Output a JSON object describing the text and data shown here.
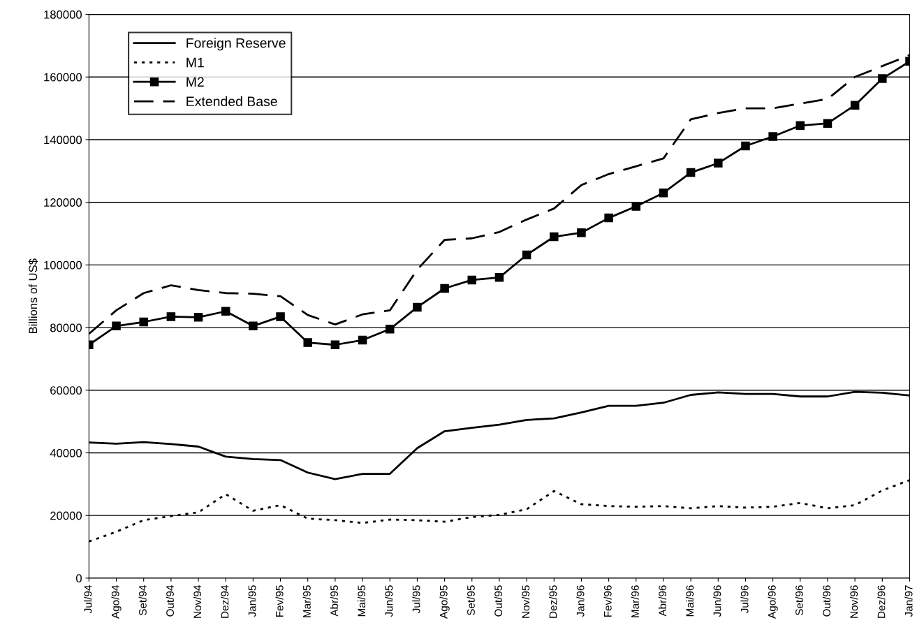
{
  "chart_data": {
    "type": "line",
    "ylabel": "Billions of US$",
    "categories": [
      "Jul/94",
      "Ago/94",
      "Set/94",
      "Out/94",
      "Nov/94",
      "Dez/94",
      "Jan/95",
      "Fev/95",
      "Mar/95",
      "Abr/95",
      "Mai/95",
      "Jun/95",
      "Jul/95",
      "Ago/95",
      "Set/95",
      "Out/95",
      "Nov/95",
      "Dez/95",
      "Jan/96",
      "Fev/96",
      "Mar/96",
      "Abr/96",
      "Mai/96",
      "Jun/96",
      "Jul/96",
      "Ago/96",
      "Set/96",
      "Out/96",
      "Nov/96",
      "Dez/96",
      "Jan/97"
    ],
    "series": [
      {
        "name": "Foreign Reserve",
        "color": "#000000",
        "line_style": "solid",
        "marker": "none",
        "values": [
          43300,
          42900,
          43400,
          42800,
          42000,
          38800,
          38000,
          37700,
          33700,
          31600,
          33300,
          33300,
          41500,
          46900,
          48000,
          49000,
          50500,
          51000,
          52900,
          55000,
          55000,
          56000,
          58500,
          59300,
          58800,
          58800,
          58000,
          58000,
          59500,
          59200,
          58300
        ]
      },
      {
        "name": "M1",
        "color": "#000000",
        "line_style": "dotted",
        "marker": "none",
        "values": [
          11700,
          14800,
          18500,
          19800,
          21000,
          26800,
          21500,
          23300,
          19000,
          18500,
          17600,
          18700,
          18500,
          18000,
          19500,
          20200,
          22000,
          27800,
          23600,
          23000,
          22800,
          23000,
          22300,
          23000,
          22500,
          22800,
          24000,
          22300,
          23300,
          28000,
          31300
        ]
      },
      {
        "name": "M2",
        "color": "#000000",
        "line_style": "solid",
        "marker": "square",
        "values": [
          74500,
          80500,
          81800,
          83500,
          83300,
          85200,
          80500,
          83500,
          75200,
          74500,
          76000,
          79500,
          86500,
          92500,
          95200,
          96000,
          103200,
          109000,
          110300,
          115000,
          118700,
          123000,
          129500,
          132500,
          138000,
          141000,
          144500,
          145200,
          151000,
          159500,
          165000
        ]
      },
      {
        "name": "Extended Base",
        "color": "#000000",
        "line_style": "dashed",
        "marker": "none",
        "values": [
          78000,
          85500,
          91000,
          93500,
          92000,
          91000,
          90800,
          90000,
          84000,
          81000,
          84200,
          85500,
          98500,
          108000,
          108500,
          110500,
          114500,
          118000,
          125500,
          129000,
          131500,
          134000,
          146500,
          148500,
          150000,
          150000,
          151500,
          153000,
          160000,
          163500,
          167000
        ]
      }
    ],
    "ylim": [
      0,
      180000
    ],
    "yticks": [
      0,
      20000,
      40000,
      60000,
      80000,
      100000,
      120000,
      140000,
      160000,
      180000
    ],
    "grid": "y",
    "legend": "top left"
  }
}
